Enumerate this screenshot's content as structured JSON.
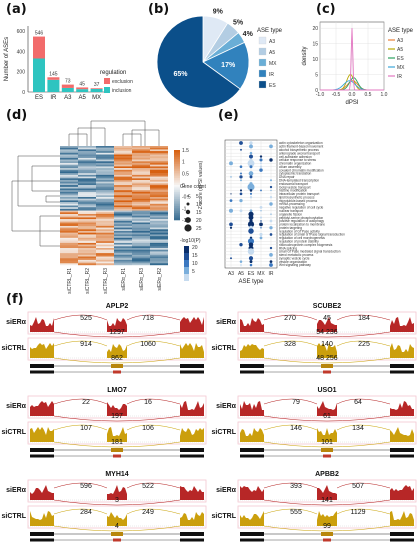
{
  "panel_labels": [
    "(a)",
    "(b)",
    "(c)",
    "(d)",
    "(e)",
    "(f)"
  ],
  "panel_a": {
    "chart_data": {
      "type": "bar",
      "categories": [
        "ES",
        "IR",
        "A3",
        "A5",
        "MX"
      ],
      "series": [
        {
          "name": "exclusion",
          "values": [
            546,
            145,
            73,
            45,
            37
          ]
        },
        {
          "name": "inclusion",
          "values": [
            330,
            120,
            40,
            28,
            30
          ]
        }
      ],
      "totals": [
        546,
        145,
        73,
        45,
        37
      ],
      "ylabel": "Number of ASEs",
      "yticks": [
        0,
        200,
        400,
        600
      ],
      "ylim": [
        0,
        650
      ],
      "legend_title": "regulation",
      "legend_placement": "right",
      "colors": {
        "exclusion": "#f26b6b",
        "inclusion": "#2ec4c0"
      }
    }
  },
  "panel_b": {
    "chart_data": {
      "type": "pie",
      "legend_title": "ASE type",
      "slices": [
        {
          "name": "A3",
          "value": 9,
          "label": "9%",
          "color": "#dfe9f5"
        },
        {
          "name": "A5",
          "value": 5,
          "label": "5%",
          "color": "#b3cde3"
        },
        {
          "name": "MX",
          "value": 4,
          "label": "4%",
          "color": "#6aaed6"
        },
        {
          "name": "IR",
          "value": 17,
          "label": "17%",
          "color": "#3182bd"
        },
        {
          "name": "ES",
          "value": 65,
          "label": "65%",
          "color": "#0b4f8a"
        }
      ]
    }
  },
  "panel_c": {
    "chart_data": {
      "type": "line",
      "xlabel": "dPSI",
      "ylabel": "density",
      "xticks": [
        "-1.0",
        "-0.5",
        "0.0",
        "0.5",
        "1.0"
      ],
      "yticks": [
        "0",
        "5",
        "10",
        "15",
        "20"
      ],
      "xlim": [
        -1,
        1
      ],
      "ylim": [
        0,
        22
      ],
      "legend_title": "ASE type",
      "series": [
        {
          "name": "A3",
          "color": "#e8823a",
          "peak": 3
        },
        {
          "name": "A5",
          "color": "#b9a800",
          "peak": 5
        },
        {
          "name": "ES",
          "color": "#2ca25f",
          "peak": 4
        },
        {
          "name": "MX",
          "color": "#3ba7d8",
          "peak": 3
        },
        {
          "name": "IR",
          "color": "#e377c2",
          "peak": 20
        }
      ]
    }
  },
  "panel_d": {
    "chart_data": {
      "type": "heatmap",
      "columns": [
        "siCTRL_R1",
        "siCTRL_R2",
        "siCTRL_R3",
        "siERα_R1",
        "siERα_R3",
        "siERα_R2"
      ],
      "colorbar_label": "Z-score (dPSI values)",
      "colorbar_ticks": [
        "1.5",
        "1",
        "0.5",
        "0",
        "-0.5",
        "-1",
        "-1.5"
      ],
      "colorbar_range": [
        -1.5,
        1.5
      ]
    }
  },
  "panel_e": {
    "chart_data": {
      "type": "scatter",
      "xlabel": "ASE type",
      "categories": [
        "A3",
        "A5",
        "ES",
        "MX",
        "IR"
      ],
      "size_legend_title": "Gene count",
      "size_legend": [
        "5",
        "10",
        "15",
        "20",
        "25"
      ],
      "color_legend_title": "-log10(P)",
      "color_legend": [
        "20",
        "15",
        "10",
        "5"
      ],
      "terms": [
        "actin cytoskeleton organization",
        "actin filament-based movement",
        "alcohol biosynthetic process",
        "anterograde axonal transport",
        "cell-substrate adhesion",
        "cellular response to stress",
        "chromatin organization",
        "cilium assembly",
        "covalent chromatin modification",
        "cytoplasmic translation",
        "DNA repair",
        "DNA-templated transcription",
        "endosomal transport",
        "Golgi vesicle transport",
        "histone modification",
        "intracellular protein transport",
        "lipid biosynthetic process",
        "microtubule-based process",
        "mRNA processing",
        "negative regulation of cell cycle",
        "nuclear transport",
        "organelle fission",
        "peptidyl-serine phosphorylation",
        "positive regulation of autophagy",
        "protein localization to membrane",
        "protein targeting",
        "regulation of GTPase activity",
        "regulation of small GTPase signal transduction",
        "regulation of cell morphogenesis",
        "regulation of protein stability",
        "ribonucleoprotein complex biogenesis",
        "RNA splicing",
        "small GTPase mediated signal transduction",
        "sterol metabolic process",
        "synaptic vesicle cycle",
        "vesicle organization",
        "Wnt signaling pathway"
      ]
    }
  },
  "panel_f": {
    "genes": [
      {
        "name": "APLP2",
        "top_counts": [
          "525",
          "718"
        ],
        "top_mid": "1297",
        "bot_counts": [
          "914",
          "1060"
        ],
        "bot_mid": "862"
      },
      {
        "name": "SCUBE2",
        "top_counts": [
          "270",
          "45",
          "184"
        ],
        "top_mid": "54  236",
        "bot_counts": [
          "328",
          "140",
          "225"
        ],
        "bot_mid": "48   256"
      },
      {
        "name": "LMO7",
        "top_counts": [
          "22",
          "16"
        ],
        "top_mid": "197",
        "bot_counts": [
          "107",
          "106"
        ],
        "bot_mid": "181"
      },
      {
        "name": "USO1",
        "top_counts": [
          "79",
          "64"
        ],
        "top_mid": "61",
        "bot_counts": [
          "146",
          "134"
        ],
        "bot_mid": "101"
      },
      {
        "name": "MYH14",
        "top_counts": [
          "596",
          "522"
        ],
        "top_mid": "3",
        "bot_counts": [
          "284",
          "249"
        ],
        "bot_mid": "4"
      },
      {
        "name": "APBB2",
        "top_counts": [
          "393",
          "507"
        ],
        "top_mid": "141",
        "bot_counts": [
          "555",
          "1129"
        ],
        "bot_mid": "99"
      }
    ],
    "row_labels": {
      "top": "siERα",
      "bottom": "siCTRL"
    }
  }
}
